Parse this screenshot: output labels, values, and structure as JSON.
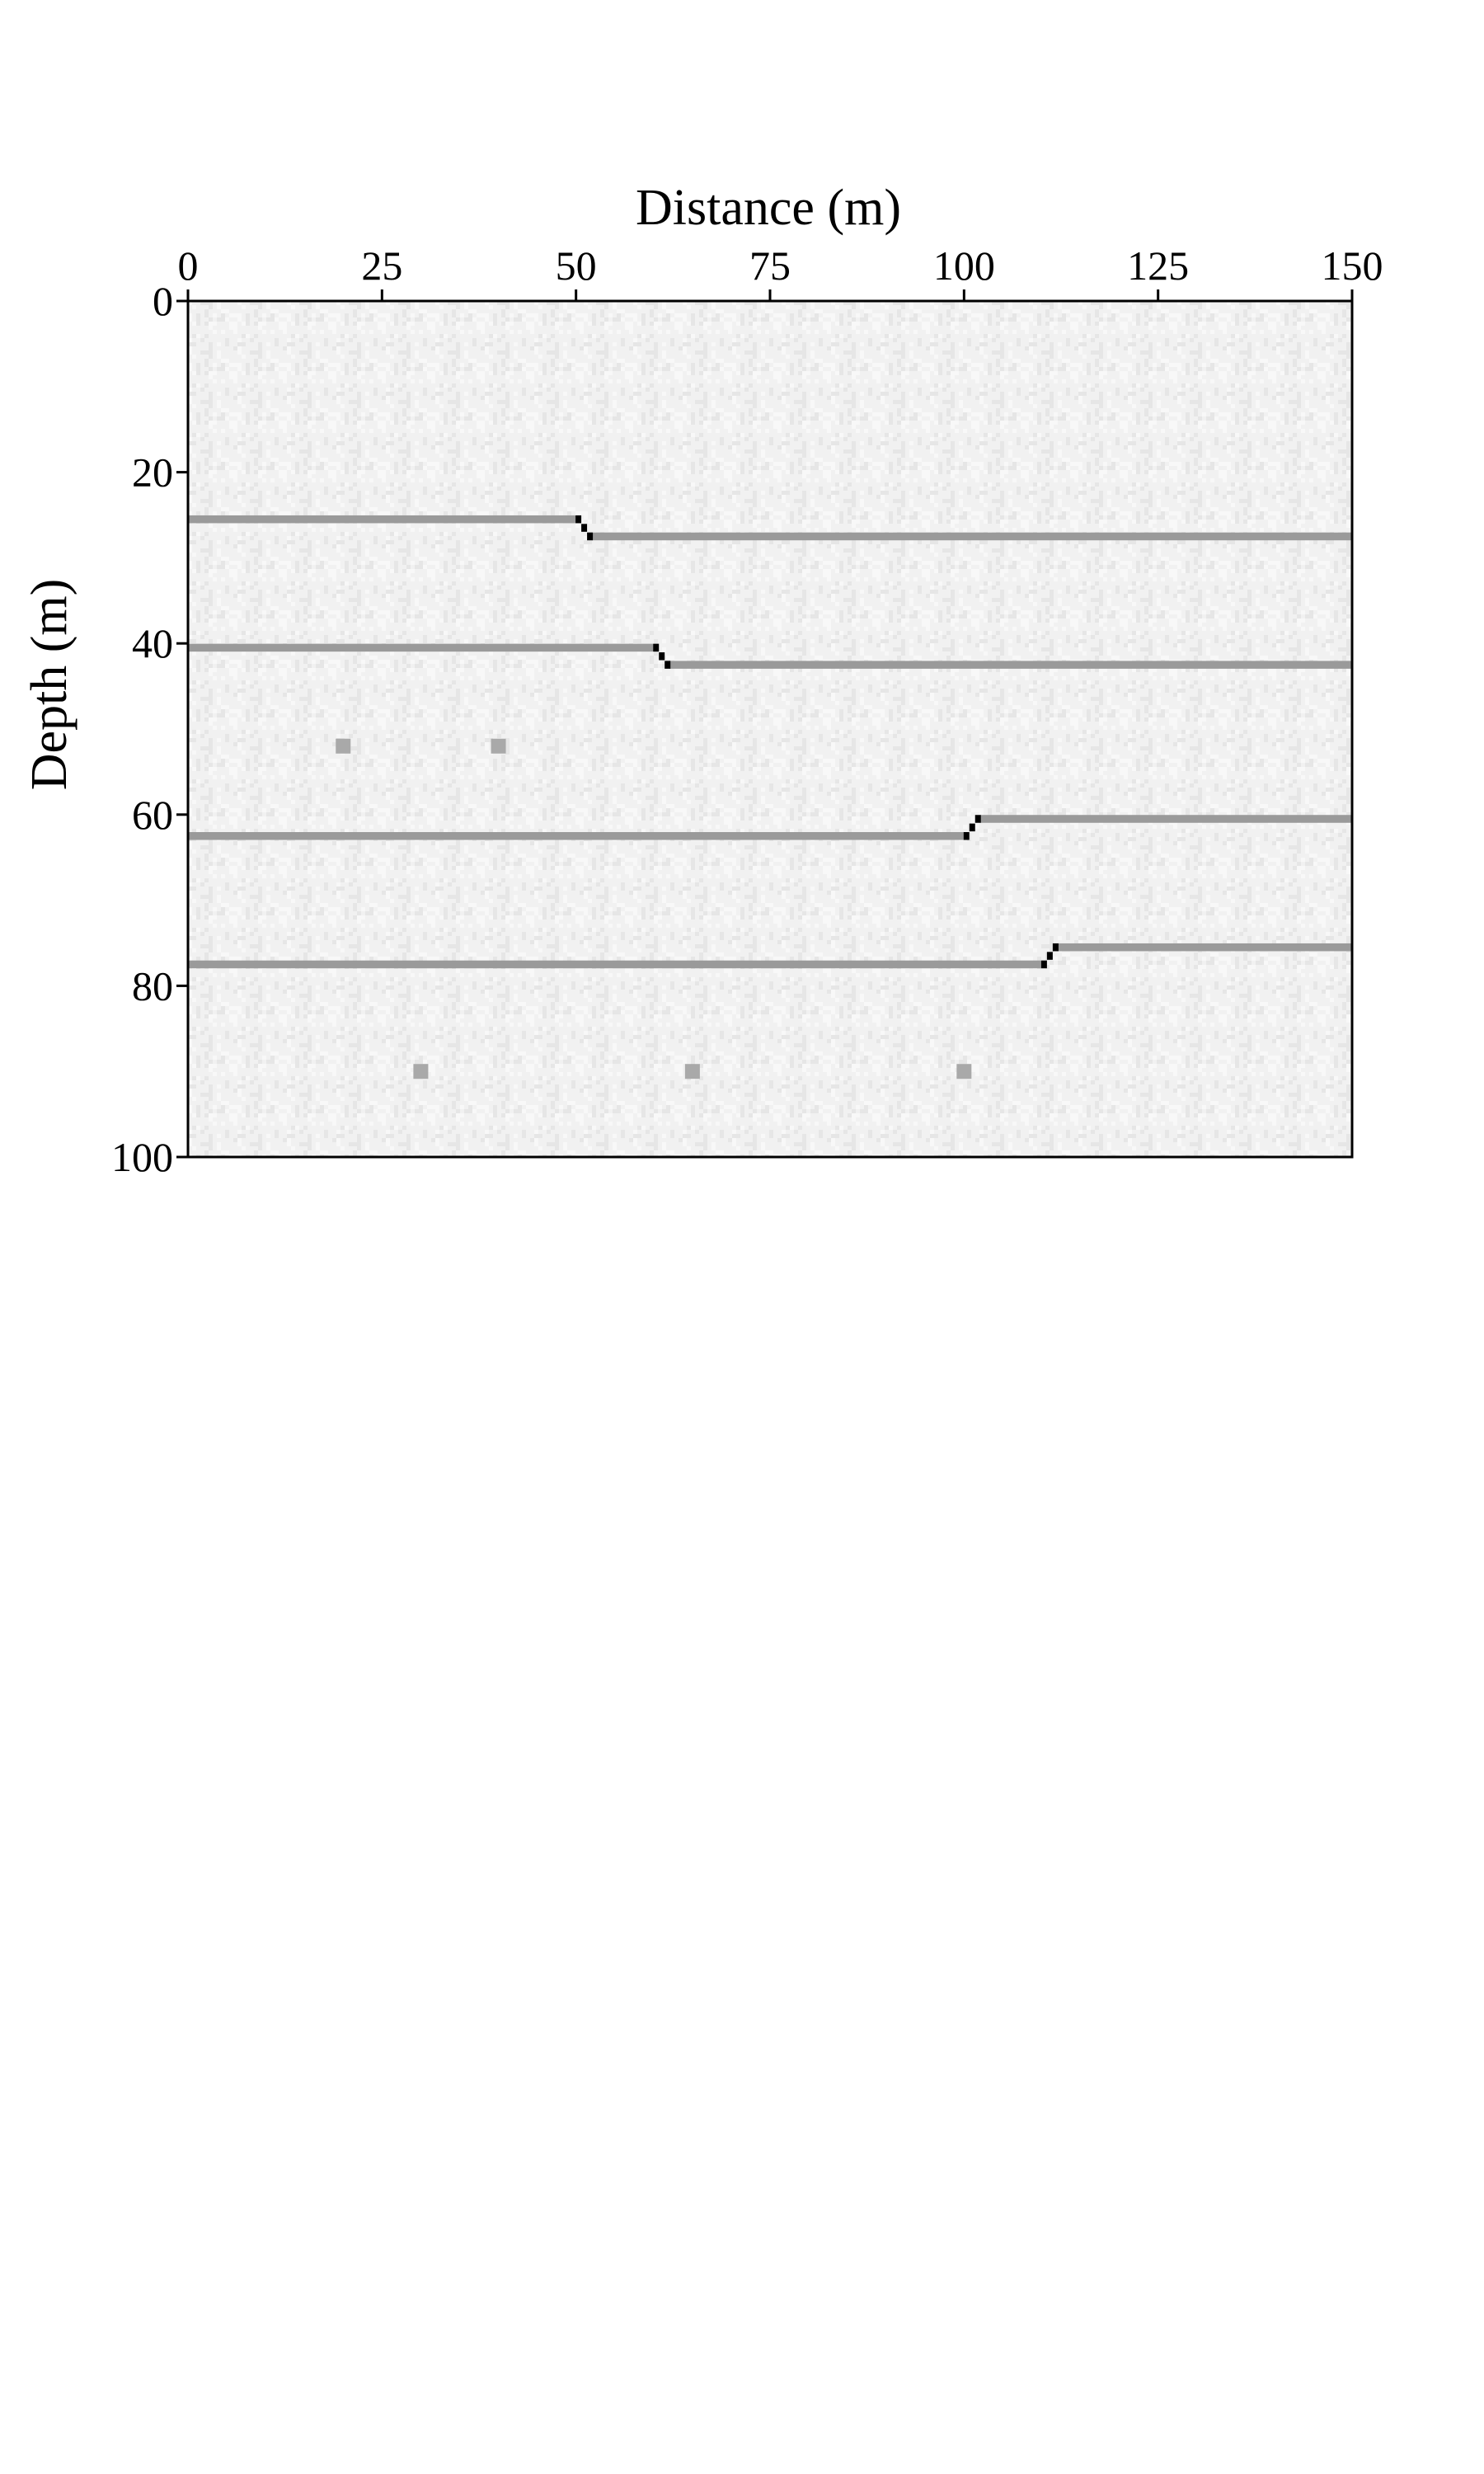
{
  "chart_data": {
    "type": "heatmap",
    "title": "",
    "xlabel": "Distance (m)",
    "ylabel": "Depth (m)",
    "xlim": [
      0,
      150
    ],
    "ylim": [
      0,
      100
    ],
    "x_axis_position": "top",
    "y_axis_inverted": true,
    "xticks": [
      0,
      25,
      50,
      75,
      100,
      125,
      150
    ],
    "yticks": [
      0,
      20,
      40,
      60,
      80,
      100
    ],
    "grid": false,
    "legend": "none",
    "colors": {
      "background": "#f1f1f1",
      "noise": "#e6e6e6",
      "reflector": "#9a9a9a",
      "fault_step": "#000000",
      "diffractor": "#a9a9a9",
      "frame": "#000000"
    },
    "reflectors": [
      {
        "fault_x": 51,
        "depth_left": 25.5,
        "depth_right": 27.5
      },
      {
        "fault_x": 61,
        "depth_left": 40.5,
        "depth_right": 42.5
      },
      {
        "fault_x": 101,
        "depth_left": 62.5,
        "depth_right": 60.5
      },
      {
        "fault_x": 111,
        "depth_left": 77.5,
        "depth_right": 75.5
      }
    ],
    "diffractors": [
      {
        "x": 20,
        "y": 52
      },
      {
        "x": 40,
        "y": 52
      },
      {
        "x": 30,
        "y": 90
      },
      {
        "x": 65,
        "y": 90
      },
      {
        "x": 100,
        "y": 90
      }
    ]
  }
}
